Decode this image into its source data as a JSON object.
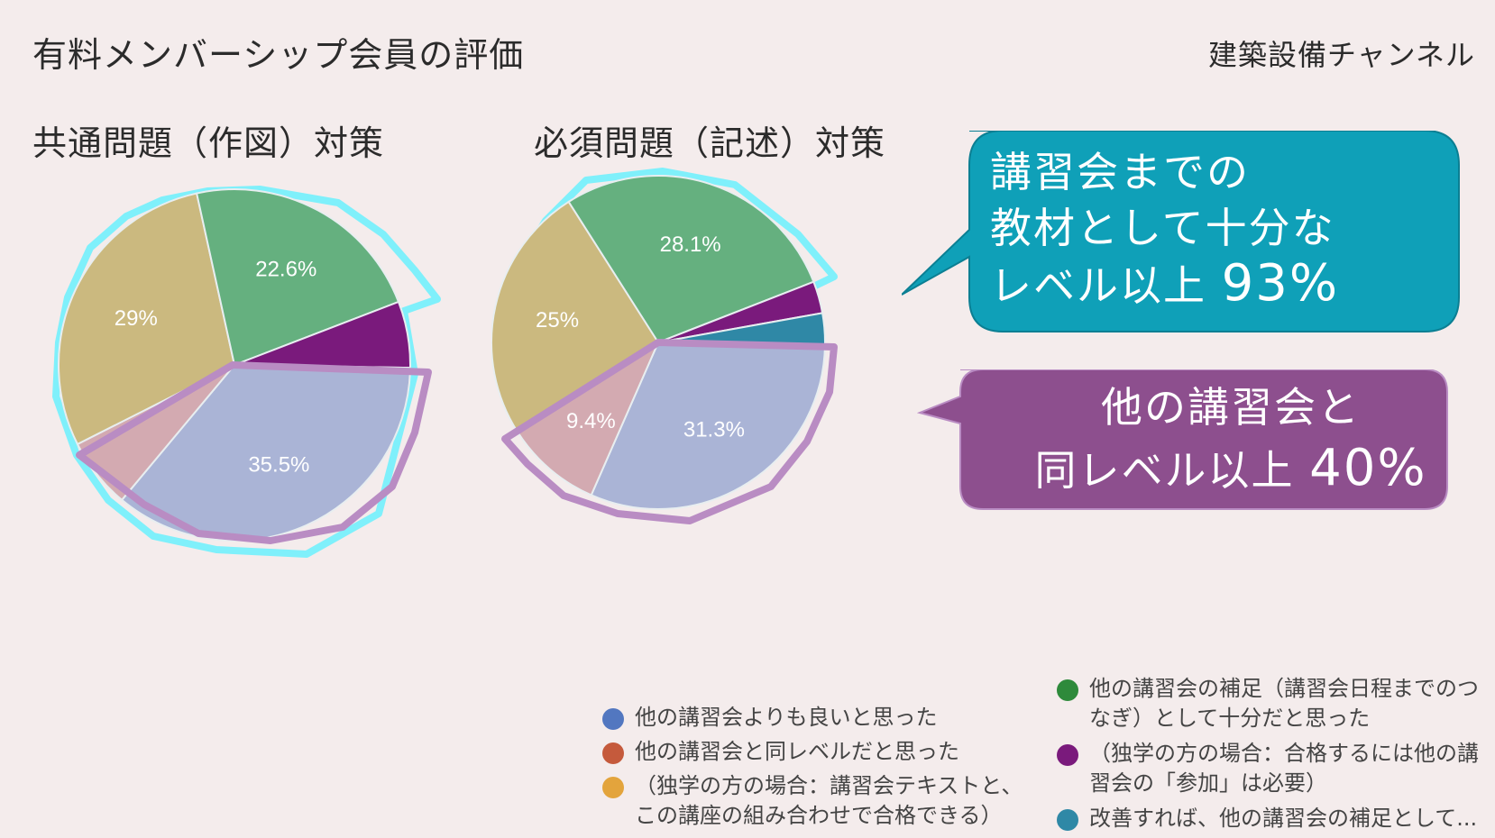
{
  "header": {
    "title": "有料メンバーシップ会員の評価",
    "channel": "建築設備チャンネル"
  },
  "colors": {
    "background": "#f4ecec",
    "highlight_cyan": "#7ff0fb",
    "highlight_purple": "#b98cc3",
    "callout_teal": "#0fa0b8",
    "callout_purple": "#8d4f8e"
  },
  "chart_data": [
    {
      "type": "pie",
      "title": "共通問題（作図）対策",
      "slices": [
        {
          "legend": "better",
          "value": 35.5,
          "label": "35.5%",
          "color": "#aab4d6"
        },
        {
          "legend": "same",
          "value": 6.5,
          "label": "",
          "color": "#d3aab1"
        },
        {
          "legend": "self_ok",
          "value": 29.0,
          "label": "29%",
          "color": "#cbb97f"
        },
        {
          "legend": "supplement",
          "value": 22.6,
          "label": "22.6%",
          "color": "#65b07f"
        },
        {
          "legend": "need_other",
          "value": 6.1,
          "label": "",
          "color": "#7a1a7c"
        },
        {
          "legend": "improve",
          "value": 0.3,
          "label": "",
          "color": "#2f88a6"
        }
      ]
    },
    {
      "type": "pie",
      "title": "必須問題（記述）対策",
      "slices": [
        {
          "legend": "better",
          "value": 31.3,
          "label": "31.3%",
          "color": "#aab4d6"
        },
        {
          "legend": "same",
          "value": 9.4,
          "label": "9.4%",
          "color": "#d3aab1"
        },
        {
          "legend": "self_ok",
          "value": 25.0,
          "label": "25%",
          "color": "#cbb97f"
        },
        {
          "legend": "supplement",
          "value": 28.1,
          "label": "28.1%",
          "color": "#65b07f"
        },
        {
          "legend": "need_other",
          "value": 3.1,
          "label": "",
          "color": "#7a1a7c"
        },
        {
          "legend": "improve",
          "value": 3.1,
          "label": "",
          "color": "#2f88a6"
        }
      ]
    }
  ],
  "callouts": {
    "teal": {
      "line1": "講習会までの",
      "line2": "教材として十分な",
      "line3_prefix": "レベル以上",
      "line3_value": "93%"
    },
    "purple": {
      "line1": "他の講習会と",
      "line2_prefix": "同レベル以上",
      "line2_value": "40%"
    }
  },
  "legend": {
    "better": {
      "label": "他の講習会よりも良いと思った",
      "color": "#5277c0"
    },
    "same": {
      "label": "他の講習会と同レベルだと思った",
      "color": "#c55a3c"
    },
    "self_ok": {
      "line1": "（独学の方の場合：講習会テキストと、",
      "line2": "この講座の組み合わせで合格できる）",
      "color": "#e3a43c"
    },
    "supplement": {
      "line1": "他の講習会の補足（講習会日程までのつ",
      "line2": "なぎ）として十分だと思った",
      "color": "#2e8a3b"
    },
    "need_other": {
      "line1": "（独学の方の場合：合格するには他の講",
      "line2": "習会の「参加」は必要）",
      "color": "#7a1a7c"
    },
    "improve": {
      "label": "改善すれば、他の講習会の補足として...",
      "color": "#2f88a6"
    }
  }
}
